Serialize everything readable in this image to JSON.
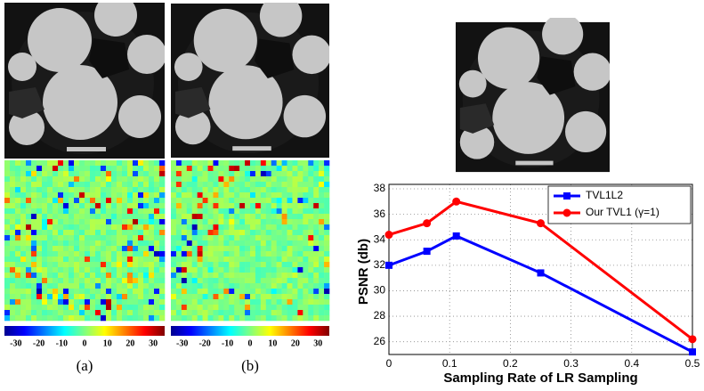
{
  "panels": [
    {
      "caption": "(a)",
      "colorbar_ticks": [
        -30,
        -20,
        -10,
        0,
        10,
        20,
        30
      ]
    },
    {
      "caption": "(b)",
      "colorbar_ticks": [
        -30,
        -20,
        -10,
        0,
        10,
        20,
        30
      ]
    }
  ],
  "clim": [
    -35,
    35
  ],
  "chart_data": {
    "type": "line",
    "xlabel": "Sampling Rate of LR Sampling",
    "ylabel": "PSNR (db)",
    "x": [
      0,
      0.0625,
      0.111,
      0.25,
      0.5
    ],
    "series": [
      {
        "name": "TVL1L2",
        "color": "#0000ff",
        "marker": "square",
        "values": [
          32.0,
          33.1,
          34.3,
          31.4,
          25.2
        ]
      },
      {
        "name": "Our TVL1 (γ=1)",
        "color": "#ff0000",
        "marker": "circle",
        "values": [
          34.4,
          35.3,
          37.0,
          35.3,
          26.2
        ]
      }
    ],
    "xlim": [
      0,
      0.5
    ],
    "xticks": [
      0,
      0.1,
      0.2,
      0.3,
      0.4,
      0.5
    ],
    "ylim": [
      25,
      38
    ],
    "yticks": [
      26,
      28,
      30,
      32,
      34,
      36,
      38
    ],
    "grid": true,
    "legend": "upper right"
  }
}
